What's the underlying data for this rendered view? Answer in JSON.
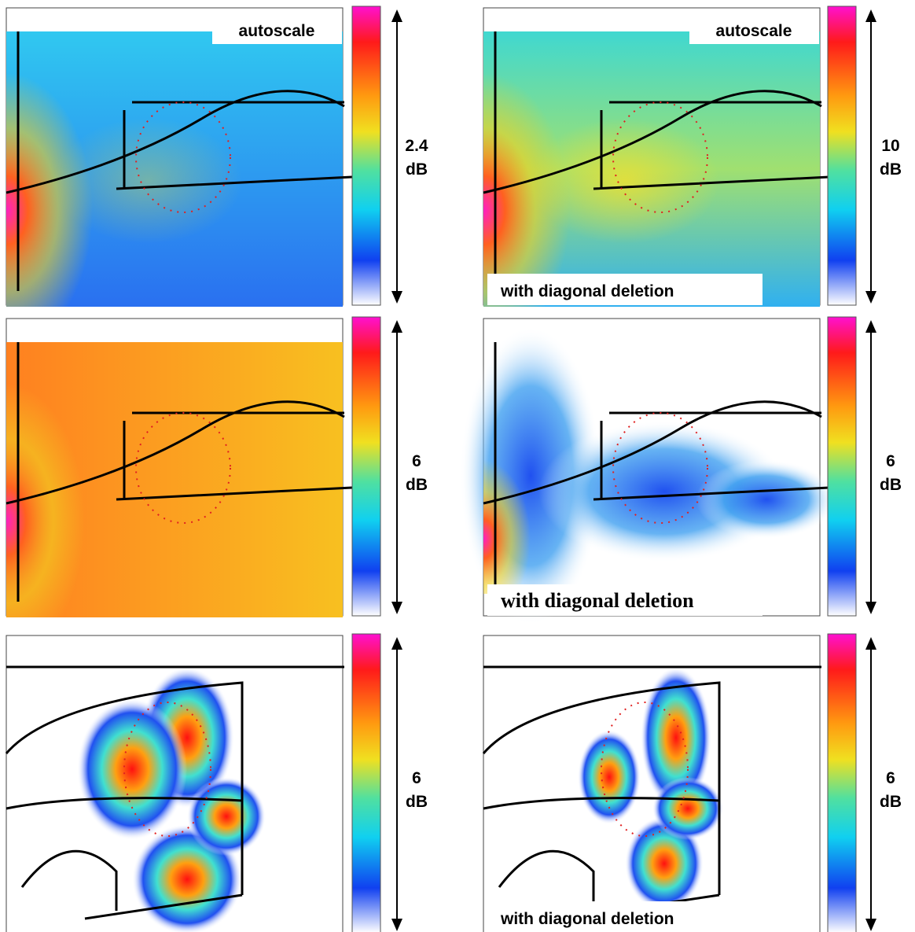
{
  "panels": [
    {
      "top_label": "autoscale",
      "range": 2.4,
      "unit": "dB"
    },
    {
      "top_label": "autoscale",
      "range": 10,
      "unit": "dB",
      "bottom_label": "with diagonal deletion"
    },
    {
      "range": 6,
      "unit": "dB"
    },
    {
      "range": 6,
      "unit": "dB",
      "bottom_label": "with diagonal deletion"
    },
    {
      "range": 6,
      "unit": "dB"
    },
    {
      "range": 6,
      "unit": "dB",
      "bottom_label": "with diagonal deletion"
    }
  ]
}
